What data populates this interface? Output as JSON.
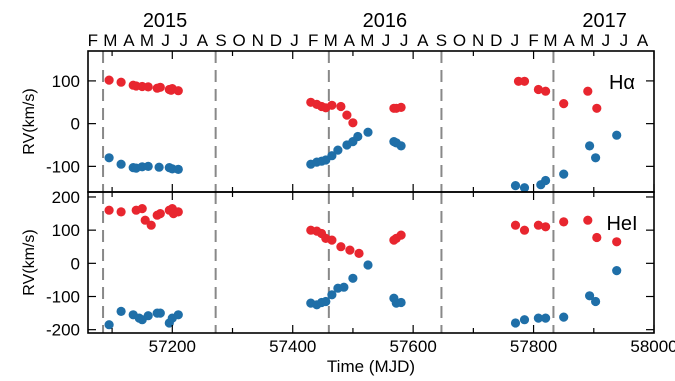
{
  "colors": {
    "red": "#e8262f",
    "blue": "#1f6fa8",
    "dash": "#888888"
  },
  "chart_data": {
    "type": "scatter",
    "xlabel": "Time (MJD)",
    "xlim": [
      57060,
      58000
    ],
    "x_ticks": [
      57200,
      57400,
      57600,
      57800,
      58000
    ],
    "top_axis": {
      "years": [
        {
          "label": "2015",
          "mjd": 57188
        },
        {
          "label": "2016",
          "mjd": 57553
        },
        {
          "label": "2017",
          "mjd": 57918
        }
      ],
      "months": [
        {
          "label": "F",
          "mjd": 57068
        },
        {
          "label": "M",
          "mjd": 57097
        },
        {
          "label": "A",
          "mjd": 57128
        },
        {
          "label": "M",
          "mjd": 57158
        },
        {
          "label": "J",
          "mjd": 57189
        },
        {
          "label": "J",
          "mjd": 57219
        },
        {
          "label": "A",
          "mjd": 57250
        },
        {
          "label": "S",
          "mjd": 57281
        },
        {
          "label": "O",
          "mjd": 57311
        },
        {
          "label": "N",
          "mjd": 57342
        },
        {
          "label": "D",
          "mjd": 57372
        },
        {
          "label": "J",
          "mjd": 57403
        },
        {
          "label": "F",
          "mjd": 57434
        },
        {
          "label": "M",
          "mjd": 57463
        },
        {
          "label": "A",
          "mjd": 57494
        },
        {
          "label": "M",
          "mjd": 57524
        },
        {
          "label": "J",
          "mjd": 57555
        },
        {
          "label": "J",
          "mjd": 57585
        },
        {
          "label": "A",
          "mjd": 57616
        },
        {
          "label": "S",
          "mjd": 57647
        },
        {
          "label": "O",
          "mjd": 57677
        },
        {
          "label": "N",
          "mjd": 57708
        },
        {
          "label": "D",
          "mjd": 57738
        },
        {
          "label": "J",
          "mjd": 57769
        },
        {
          "label": "F",
          "mjd": 57800
        },
        {
          "label": "M",
          "mjd": 57828
        },
        {
          "label": "A",
          "mjd": 57859
        },
        {
          "label": "M",
          "mjd": 57889
        },
        {
          "label": "J",
          "mjd": 57920
        },
        {
          "label": "J",
          "mjd": 57950
        },
        {
          "label": "A",
          "mjd": 57981
        }
      ]
    },
    "vertical_dashed_lines": [
      57085,
      57272,
      57460,
      57647,
      57833
    ],
    "panels": [
      {
        "label": "Hα",
        "ylabel": "RV(km/s)",
        "ylim": [
          -160,
          170
        ],
        "y_ticks": [
          100,
          0,
          -100
        ],
        "series": [
          {
            "color": "red",
            "points": [
              [
                57095,
                102
              ],
              [
                57115,
                97
              ],
              [
                57135,
                90
              ],
              [
                57140,
                88
              ],
              [
                57150,
                87
              ],
              [
                57160,
                86
              ],
              [
                57175,
                83
              ],
              [
                57180,
                85
              ],
              [
                57195,
                80
              ],
              [
                57198,
                78
              ],
              [
                57200,
                82
              ],
              [
                57210,
                77
              ],
              [
                57430,
                50
              ],
              [
                57440,
                45
              ],
              [
                57448,
                40
              ],
              [
                57455,
                37
              ],
              [
                57465,
                43
              ],
              [
                57480,
                40
              ],
              [
                57490,
                20
              ],
              [
                57500,
                2
              ],
              [
                57568,
                36
              ],
              [
                57572,
                36
              ],
              [
                57580,
                38
              ],
              [
                57775,
                99
              ],
              [
                57785,
                99
              ],
              [
                57808,
                80
              ],
              [
                57820,
                76
              ],
              [
                57850,
                47
              ],
              [
                57890,
                76
              ],
              [
                57905,
                36
              ]
            ]
          },
          {
            "color": "blue",
            "points": [
              [
                57095,
                -80
              ],
              [
                57115,
                -95
              ],
              [
                57135,
                -103
              ],
              [
                57140,
                -104
              ],
              [
                57150,
                -101
              ],
              [
                57160,
                -100
              ],
              [
                57178,
                -102
              ],
              [
                57195,
                -103
              ],
              [
                57200,
                -106
              ],
              [
                57210,
                -107
              ],
              [
                57430,
                -95
              ],
              [
                57440,
                -90
              ],
              [
                57448,
                -88
              ],
              [
                57455,
                -85
              ],
              [
                57465,
                -75
              ],
              [
                57475,
                -62
              ],
              [
                57490,
                -50
              ],
              [
                57500,
                -42
              ],
              [
                57508,
                -30
              ],
              [
                57525,
                -20
              ],
              [
                57568,
                -42
              ],
              [
                57572,
                -45
              ],
              [
                57580,
                -52
              ],
              [
                57770,
                -145
              ],
              [
                57785,
                -150
              ],
              [
                57812,
                -143
              ],
              [
                57820,
                -133
              ],
              [
                57850,
                -118
              ],
              [
                57893,
                -52
              ],
              [
                57903,
                -80
              ],
              [
                57938,
                -27
              ]
            ]
          }
        ]
      },
      {
        "label": "HeI",
        "ylabel": "RV(km/s)",
        "ylim": [
          -210,
          215
        ],
        "y_ticks": [
          200,
          100,
          0,
          -100,
          -200
        ],
        "series": [
          {
            "color": "red",
            "points": [
              [
                57095,
                160
              ],
              [
                57115,
                155
              ],
              [
                57140,
                160
              ],
              [
                57150,
                165
              ],
              [
                57155,
                130
              ],
              [
                57165,
                115
              ],
              [
                57175,
                145
              ],
              [
                57180,
                150
              ],
              [
                57195,
                160
              ],
              [
                57200,
                165
              ],
              [
                57202,
                150
              ],
              [
                57210,
                155
              ],
              [
                57430,
                100
              ],
              [
                57440,
                97
              ],
              [
                57448,
                90
              ],
              [
                57455,
                75
              ],
              [
                57465,
                70
              ],
              [
                57480,
                50
              ],
              [
                57495,
                40
              ],
              [
                57510,
                30
              ],
              [
                57568,
                70
              ],
              [
                57572,
                75
              ],
              [
                57580,
                85
              ],
              [
                57770,
                115
              ],
              [
                57785,
                100
              ],
              [
                57808,
                115
              ],
              [
                57820,
                110
              ],
              [
                57850,
                125
              ],
              [
                57890,
                130
              ],
              [
                57905,
                78
              ],
              [
                57938,
                65
              ]
            ]
          },
          {
            "color": "blue",
            "points": [
              [
                57095,
                -185
              ],
              [
                57115,
                -145
              ],
              [
                57135,
                -155
              ],
              [
                57145,
                -165
              ],
              [
                57150,
                -170
              ],
              [
                57160,
                -158
              ],
              [
                57175,
                -150
              ],
              [
                57180,
                -150
              ],
              [
                57195,
                -180
              ],
              [
                57200,
                -165
              ],
              [
                57210,
                -155
              ],
              [
                57430,
                -120
              ],
              [
                57440,
                -125
              ],
              [
                57448,
                -118
              ],
              [
                57455,
                -115
              ],
              [
                57465,
                -95
              ],
              [
                57475,
                -75
              ],
              [
                57485,
                -72
              ],
              [
                57500,
                -45
              ],
              [
                57525,
                -5
              ],
              [
                57568,
                -105
              ],
              [
                57572,
                -120
              ],
              [
                57580,
                -118
              ],
              [
                57770,
                -180
              ],
              [
                57785,
                -170
              ],
              [
                57808,
                -165
              ],
              [
                57820,
                -165
              ],
              [
                57850,
                -162
              ],
              [
                57893,
                -98
              ],
              [
                57903,
                -115
              ],
              [
                57938,
                -22
              ]
            ]
          }
        ]
      }
    ]
  }
}
